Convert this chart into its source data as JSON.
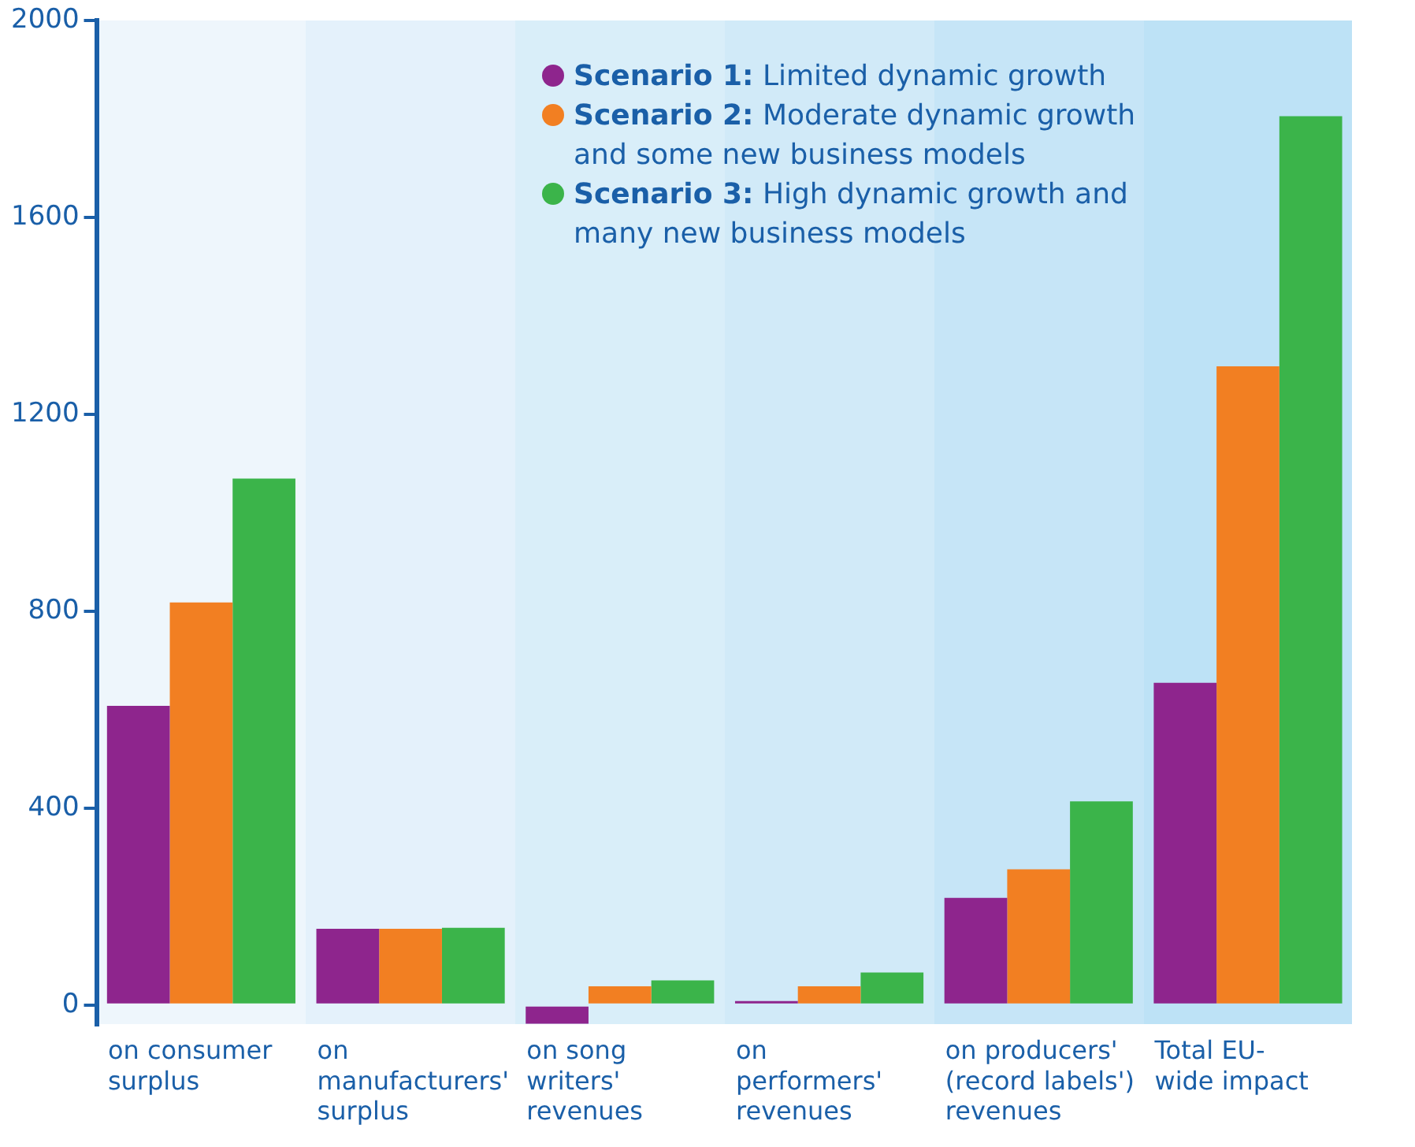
{
  "chart_data": {
    "type": "bar",
    "categories": [
      "on consumer\nsurplus",
      "on\nmanufacturers'\nsurplus",
      "on song\nwriters'\nrevenues",
      "on\nperformers'\nrevenues",
      "on producers'\n(record labels')\nrevenues",
      "Total EU-\nwide impact"
    ],
    "series": [
      {
        "name": "Scenario 1: Limited dynamic growth",
        "color": "#8e258d",
        "values": [
          608,
          155,
          -38,
          8,
          218,
          655
        ]
      },
      {
        "name": "Scenario 2: Moderate dynamic growth and some new business models",
        "color": "#f27f22",
        "values": [
          818,
          155,
          38,
          38,
          276,
          1298
        ]
      },
      {
        "name": "Scenario 3: High dynamic growth and many new business models",
        "color": "#3bb44a",
        "values": [
          1070,
          157,
          50,
          66,
          414,
          1806
        ]
      }
    ],
    "ylim": [
      -40,
      2000
    ],
    "yticks": [
      0,
      400,
      800,
      1200,
      1600,
      2000
    ],
    "grid": false,
    "legend": "top"
  }
}
